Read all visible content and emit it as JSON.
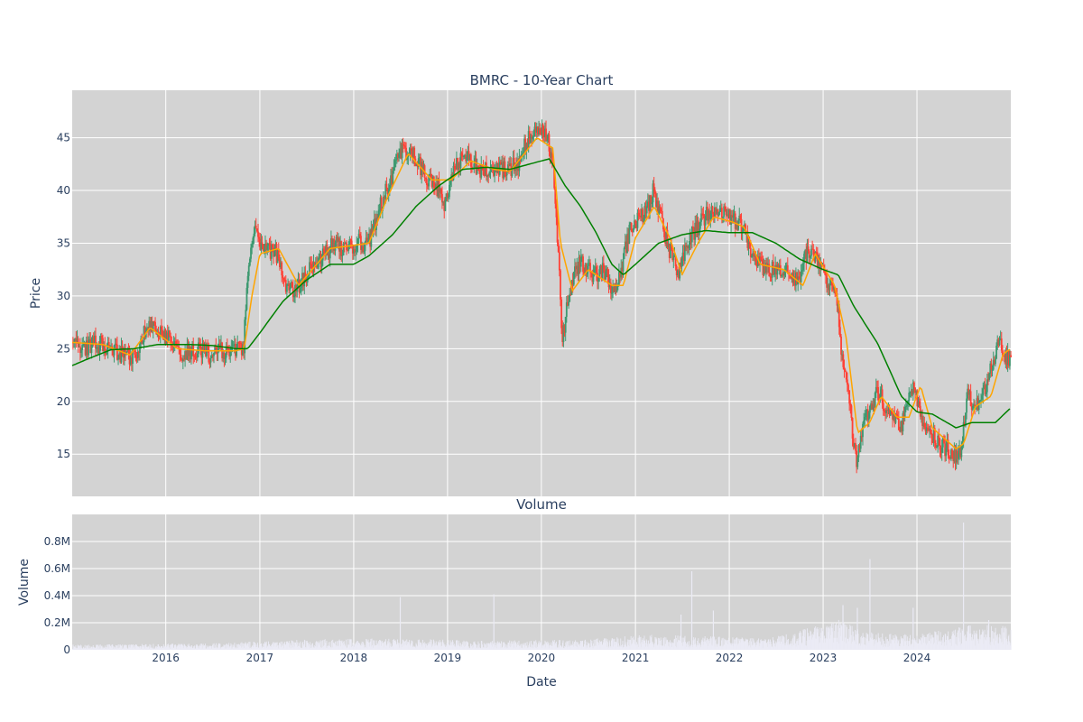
{
  "chart_data": [
    {
      "type": "candlestick",
      "title": "BMRC - 10-Year Chart",
      "ylabel": "Price",
      "xlim": [
        "2015-01-02",
        "2024-12-31"
      ],
      "ylim": [
        11,
        49.5
      ],
      "y_ticks": [
        15,
        20,
        25,
        30,
        35,
        40,
        45
      ],
      "grid": true,
      "legend": "none",
      "colors": {
        "increasing": "#3d9970",
        "decreasing": "#ff4136",
        "ma_short": "#ffa500",
        "ma_long": "#008000",
        "plot_bg": "#d3d3d3",
        "grid": "#ffffff"
      },
      "price_keypoints": [
        [
          "2015-01-02",
          25.6
        ],
        [
          "2015-03-01",
          25.2
        ],
        [
          "2015-05-01",
          25.5
        ],
        [
          "2015-06-15",
          24.8
        ],
        [
          "2015-08-01",
          24.2
        ],
        [
          "2015-09-15",
          24.4
        ],
        [
          "2015-10-20",
          27.2
        ],
        [
          "2015-12-01",
          27.0
        ],
        [
          "2016-01-15",
          26.0
        ],
        [
          "2016-02-15",
          24.6
        ],
        [
          "2016-05-01",
          24.8
        ],
        [
          "2016-06-15",
          24.5
        ],
        [
          "2016-09-01",
          24.8
        ],
        [
          "2016-10-30",
          25.1
        ],
        [
          "2016-11-15",
          31.0
        ],
        [
          "2016-12-01",
          35.0
        ],
        [
          "2016-12-15",
          36.2
        ],
        [
          "2017-01-15",
          34.0
        ],
        [
          "2017-03-01",
          34.5
        ],
        [
          "2017-04-15",
          31.0
        ],
        [
          "2017-05-15",
          30.5
        ],
        [
          "2017-07-01",
          32.0
        ],
        [
          "2017-09-01",
          33.5
        ],
        [
          "2017-10-15",
          35.0
        ],
        [
          "2017-12-01",
          34.5
        ],
        [
          "2018-01-15",
          35.0
        ],
        [
          "2018-03-01",
          35.0
        ],
        [
          "2018-04-01",
          37.5
        ],
        [
          "2018-05-15",
          40.5
        ],
        [
          "2018-07-01",
          43.5
        ],
        [
          "2018-08-15",
          44.0
        ],
        [
          "2018-10-01",
          41.5
        ],
        [
          "2018-12-01",
          40.0
        ],
        [
          "2018-12-24",
          38.5
        ],
        [
          "2019-01-15",
          41.5
        ],
        [
          "2019-03-01",
          43.5
        ],
        [
          "2019-05-01",
          42.0
        ],
        [
          "2019-07-01",
          41.8
        ],
        [
          "2019-09-01",
          42.0
        ],
        [
          "2019-10-01",
          42.5
        ],
        [
          "2019-11-01",
          44.5
        ],
        [
          "2019-12-01",
          45.2
        ],
        [
          "2020-01-15",
          45.5
        ],
        [
          "2020-02-15",
          43.0
        ],
        [
          "2020-03-10",
          33.0
        ],
        [
          "2020-03-23",
          25.5
        ],
        [
          "2020-04-15",
          30.0
        ],
        [
          "2020-06-01",
          33.5
        ],
        [
          "2020-07-15",
          32.0
        ],
        [
          "2020-09-01",
          32.5
        ],
        [
          "2020-10-15",
          30.0
        ],
        [
          "2020-11-15",
          33.5
        ],
        [
          "2020-12-15",
          36.5
        ],
        [
          "2021-02-01",
          37.5
        ],
        [
          "2021-03-15",
          40.0
        ],
        [
          "2021-05-01",
          35.5
        ],
        [
          "2021-06-15",
          32.0
        ],
        [
          "2021-08-01",
          35.5
        ],
        [
          "2021-10-01",
          37.5
        ],
        [
          "2021-11-01",
          38.0
        ],
        [
          "2022-01-01",
          37.5
        ],
        [
          "2022-02-15",
          37.0
        ],
        [
          "2022-04-01",
          34.0
        ],
        [
          "2022-05-15",
          32.5
        ],
        [
          "2022-08-01",
          32.5
        ],
        [
          "2022-10-01",
          31.0
        ],
        [
          "2022-11-01",
          34.5
        ],
        [
          "2022-12-01",
          33.5
        ],
        [
          "2023-01-15",
          31.5
        ],
        [
          "2023-03-01",
          29.5
        ],
        [
          "2023-03-15",
          24.0
        ],
        [
          "2023-04-15",
          20.0
        ],
        [
          "2023-05-10",
          14.0
        ],
        [
          "2023-06-01",
          17.5
        ],
        [
          "2023-07-01",
          19.0
        ],
        [
          "2023-08-01",
          21.0
        ],
        [
          "2023-09-15",
          19.0
        ],
        [
          "2023-11-01",
          17.5
        ],
        [
          "2023-12-15",
          21.5
        ],
        [
          "2024-02-01",
          17.5
        ],
        [
          "2024-04-01",
          16.0
        ],
        [
          "2024-06-01",
          15.0
        ],
        [
          "2024-06-20",
          15.5
        ],
        [
          "2024-07-15",
          20.5
        ],
        [
          "2024-08-15",
          19.5
        ],
        [
          "2024-10-01",
          21.5
        ],
        [
          "2024-11-10",
          25.5
        ],
        [
          "2024-12-31",
          23.8
        ]
      ],
      "ma_short_keypoints": [
        [
          "2015-01-02",
          25.6
        ],
        [
          "2015-05-01",
          25.4
        ],
        [
          "2015-08-15",
          24.4
        ],
        [
          "2015-11-01",
          27.0
        ],
        [
          "2016-02-15",
          25.0
        ],
        [
          "2016-06-01",
          24.8
        ],
        [
          "2016-10-01",
          24.8
        ],
        [
          "2016-11-01",
          25.0
        ],
        [
          "2016-12-01",
          30.0
        ],
        [
          "2017-01-01",
          34.0
        ],
        [
          "2017-03-15",
          34.5
        ],
        [
          "2017-06-01",
          31.0
        ],
        [
          "2017-10-01",
          34.5
        ],
        [
          "2018-01-01",
          34.8
        ],
        [
          "2018-03-01",
          35.0
        ],
        [
          "2018-05-15",
          39.5
        ],
        [
          "2018-08-01",
          43.5
        ],
        [
          "2018-11-01",
          41.0
        ],
        [
          "2019-01-15",
          41.0
        ],
        [
          "2019-04-01",
          42.8
        ],
        [
          "2019-07-01",
          42.0
        ],
        [
          "2019-09-01",
          41.8
        ],
        [
          "2019-12-15",
          45.0
        ],
        [
          "2020-02-15",
          44.0
        ],
        [
          "2020-03-15",
          35.0
        ],
        [
          "2020-05-01",
          30.5
        ],
        [
          "2020-07-01",
          32.5
        ],
        [
          "2020-10-01",
          31.0
        ],
        [
          "2020-11-15",
          31.0
        ],
        [
          "2021-01-01",
          35.5
        ],
        [
          "2021-03-15",
          38.5
        ],
        [
          "2021-05-15",
          35.5
        ],
        [
          "2021-07-01",
          32.0
        ],
        [
          "2021-09-01",
          35.0
        ],
        [
          "2021-11-01",
          37.5
        ],
        [
          "2022-01-15",
          37.0
        ],
        [
          "2022-03-01",
          36.5
        ],
        [
          "2022-05-01",
          33.0
        ],
        [
          "2022-08-01",
          32.5
        ],
        [
          "2022-10-15",
          31.0
        ],
        [
          "2022-12-01",
          34.0
        ],
        [
          "2023-02-15",
          31.0
        ],
        [
          "2023-04-01",
          26.0
        ],
        [
          "2023-05-15",
          17.0
        ],
        [
          "2023-07-01",
          18.0
        ],
        [
          "2023-08-15",
          20.5
        ],
        [
          "2023-10-15",
          18.5
        ],
        [
          "2023-12-01",
          18.5
        ],
        [
          "2024-01-15",
          21.5
        ],
        [
          "2024-03-01",
          17.5
        ],
        [
          "2024-06-01",
          15.5
        ],
        [
          "2024-07-01",
          16.0
        ],
        [
          "2024-08-15",
          19.5
        ],
        [
          "2024-10-15",
          20.5
        ],
        [
          "2024-12-01",
          24.5
        ],
        [
          "2024-12-31",
          25.0
        ]
      ],
      "ma_long_keypoints": [
        [
          "2015-01-02",
          23.4
        ],
        [
          "2015-03-01",
          24.0
        ],
        [
          "2015-06-01",
          24.9
        ],
        [
          "2015-09-01",
          25.0
        ],
        [
          "2015-12-01",
          25.4
        ],
        [
          "2016-04-01",
          25.4
        ],
        [
          "2016-07-01",
          25.3
        ],
        [
          "2016-10-01",
          25.0
        ],
        [
          "2016-11-15",
          25.0
        ],
        [
          "2017-01-01",
          26.5
        ],
        [
          "2017-04-01",
          29.5
        ],
        [
          "2017-07-01",
          31.5
        ],
        [
          "2017-10-01",
          33.0
        ],
        [
          "2018-01-01",
          33.0
        ],
        [
          "2018-03-01",
          33.8
        ],
        [
          "2018-06-01",
          35.8
        ],
        [
          "2018-09-01",
          38.5
        ],
        [
          "2018-12-01",
          40.5
        ],
        [
          "2019-03-01",
          42.0
        ],
        [
          "2019-06-01",
          42.2
        ],
        [
          "2019-09-01",
          42.0
        ],
        [
          "2019-12-01",
          42.6
        ],
        [
          "2020-02-01",
          43.0
        ],
        [
          "2020-04-01",
          40.5
        ],
        [
          "2020-06-01",
          38.5
        ],
        [
          "2020-08-01",
          36.0
        ],
        [
          "2020-10-01",
          33.0
        ],
        [
          "2020-11-15",
          32.0
        ],
        [
          "2021-01-01",
          33.0
        ],
        [
          "2021-04-01",
          35.0
        ],
        [
          "2021-07-01",
          35.8
        ],
        [
          "2021-10-01",
          36.2
        ],
        [
          "2022-01-01",
          36.0
        ],
        [
          "2022-04-01",
          36.0
        ],
        [
          "2022-07-01",
          35.0
        ],
        [
          "2022-10-01",
          33.5
        ],
        [
          "2023-01-01",
          32.5
        ],
        [
          "2023-03-01",
          32.0
        ],
        [
          "2023-05-01",
          29.0
        ],
        [
          "2023-08-01",
          25.5
        ],
        [
          "2023-11-01",
          20.5
        ],
        [
          "2024-01-01",
          19.0
        ],
        [
          "2024-03-01",
          18.8
        ],
        [
          "2024-06-01",
          17.5
        ],
        [
          "2024-08-01",
          18.0
        ],
        [
          "2024-11-01",
          18.0
        ],
        [
          "2024-12-31",
          19.4
        ]
      ]
    },
    {
      "type": "bar",
      "title": "Volume",
      "xlabel": "Date",
      "ylabel": "Volume",
      "ylim": [
        0,
        1000000
      ],
      "y_ticks": [
        0,
        200000,
        400000,
        600000,
        800000
      ],
      "y_tick_labels": [
        "0",
        "0.2M",
        "0.4M",
        "0.6M",
        "0.8M"
      ],
      "x_tick_labels": [
        "2016",
        "2017",
        "2018",
        "2019",
        "2020",
        "2021",
        "2022",
        "2023",
        "2024"
      ],
      "grid": true,
      "colors": {
        "bar": "#ebebf5",
        "plot_bg": "#d3d3d3",
        "grid": "#ffffff"
      },
      "baseline_keypoints": [
        [
          "2015-01-02",
          20000
        ],
        [
          "2016-06-01",
          25000
        ],
        [
          "2017-06-01",
          40000
        ],
        [
          "2018-06-01",
          45000
        ],
        [
          "2019-06-01",
          35000
        ],
        [
          "2020-06-01",
          40000
        ],
        [
          "2021-03-01",
          60000
        ],
        [
          "2022-06-01",
          45000
        ],
        [
          "2023-03-15",
          120000
        ],
        [
          "2023-06-01",
          70000
        ],
        [
          "2024-01-01",
          60000
        ],
        [
          "2024-08-01",
          100000
        ],
        [
          "2024-12-31",
          90000
        ]
      ],
      "spikes": [
        [
          "2018-06-29",
          390000
        ],
        [
          "2019-06-28",
          410000
        ],
        [
          "2021-06-25",
          260000
        ],
        [
          "2021-08-06",
          580000
        ],
        [
          "2021-10-29",
          290000
        ],
        [
          "2023-03-17",
          330000
        ],
        [
          "2023-05-12",
          310000
        ],
        [
          "2023-06-30",
          670000
        ],
        [
          "2023-12-15",
          310000
        ],
        [
          "2024-06-28",
          940000
        ],
        [
          "2024-07-19",
          180000
        ],
        [
          "2024-10-04",
          220000
        ]
      ]
    }
  ]
}
